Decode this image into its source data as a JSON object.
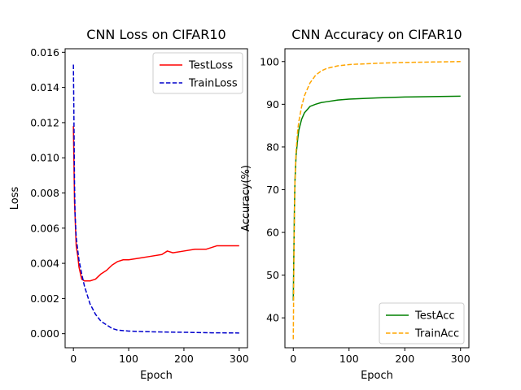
{
  "chart_data": [
    {
      "type": "line",
      "title": "CNN Loss on CIFAR10",
      "xlabel": "Epoch",
      "ylabel": "Loss",
      "xlim": [
        -15,
        315
      ],
      "ylim": [
        -0.0008,
        0.0162
      ],
      "xticks": [
        0,
        100,
        200,
        300
      ],
      "yticks": [
        0.0,
        0.002,
        0.004,
        0.006,
        0.008,
        0.01,
        0.012,
        0.014,
        0.016
      ],
      "ytick_labels": [
        "0.000",
        "0.002",
        "0.004",
        "0.006",
        "0.008",
        "0.010",
        "0.012",
        "0.014",
        "0.016"
      ],
      "grid": false,
      "legend": "upper-right",
      "series": [
        {
          "name": "TestLoss",
          "color": "#ff0000",
          "style": "solid",
          "x": [
            0,
            2,
            5,
            8,
            10,
            15,
            20,
            30,
            40,
            50,
            60,
            70,
            80,
            90,
            100,
            120,
            140,
            160,
            170,
            180,
            200,
            220,
            240,
            260,
            270,
            280,
            300
          ],
          "y": [
            0.0118,
            0.0075,
            0.005,
            0.0044,
            0.0038,
            0.0031,
            0.003,
            0.003,
            0.0031,
            0.0034,
            0.0036,
            0.0039,
            0.0041,
            0.0042,
            0.0042,
            0.0043,
            0.0044,
            0.0045,
            0.0047,
            0.0046,
            0.0047,
            0.0048,
            0.0048,
            0.005,
            0.005,
            0.005,
            0.005
          ]
        },
        {
          "name": "TrainLoss",
          "color": "#0000cc",
          "style": "dashed",
          "x": [
            0,
            1,
            2,
            3,
            5,
            8,
            10,
            15,
            20,
            25,
            30,
            40,
            50,
            60,
            70,
            80,
            100,
            125,
            150,
            200,
            250,
            300
          ],
          "y": [
            0.0153,
            0.012,
            0.0085,
            0.0068,
            0.0055,
            0.0047,
            0.0042,
            0.0034,
            0.0027,
            0.0022,
            0.0017,
            0.0011,
            0.0007,
            0.0005,
            0.0003,
            0.0002,
            0.00015,
            0.00012,
            0.0001,
            8e-05,
            5e-05,
            4e-05
          ]
        }
      ]
    },
    {
      "type": "line",
      "title": "CNN Accuracy on CIFAR10",
      "xlabel": "Epoch",
      "ylabel": "Accuracy(%)",
      "xlim": [
        -15,
        315
      ],
      "ylim": [
        33,
        103
      ],
      "xticks": [
        0,
        100,
        200,
        300
      ],
      "yticks": [
        40,
        50,
        60,
        70,
        80,
        90,
        100
      ],
      "ytick_labels": [
        "40",
        "50",
        "60",
        "70",
        "80",
        "90",
        "100"
      ],
      "grid": false,
      "legend": "lower-right",
      "series": [
        {
          "name": "TestAcc",
          "color": "#008000",
          "style": "solid",
          "x": [
            0,
            1,
            2,
            3,
            5,
            8,
            10,
            15,
            20,
            30,
            40,
            50,
            60,
            80,
            100,
            150,
            200,
            250,
            300
          ],
          "y": [
            44,
            55,
            65,
            72,
            78,
            82,
            84,
            86.5,
            88,
            89.5,
            90,
            90.4,
            90.6,
            91,
            91.2,
            91.5,
            91.7,
            91.8,
            91.9
          ]
        },
        {
          "name": "TrainAcc",
          "color": "#ffa500",
          "style": "dashed",
          "x": [
            0,
            1,
            2,
            3,
            5,
            8,
            10,
            15,
            20,
            30,
            40,
            50,
            60,
            80,
            100,
            150,
            200,
            250,
            300
          ],
          "y": [
            35,
            52,
            64,
            72,
            79,
            84,
            86,
            89.5,
            92,
            95,
            96.8,
            97.8,
            98.4,
            99,
            99.3,
            99.6,
            99.8,
            99.9,
            100
          ]
        }
      ]
    }
  ]
}
